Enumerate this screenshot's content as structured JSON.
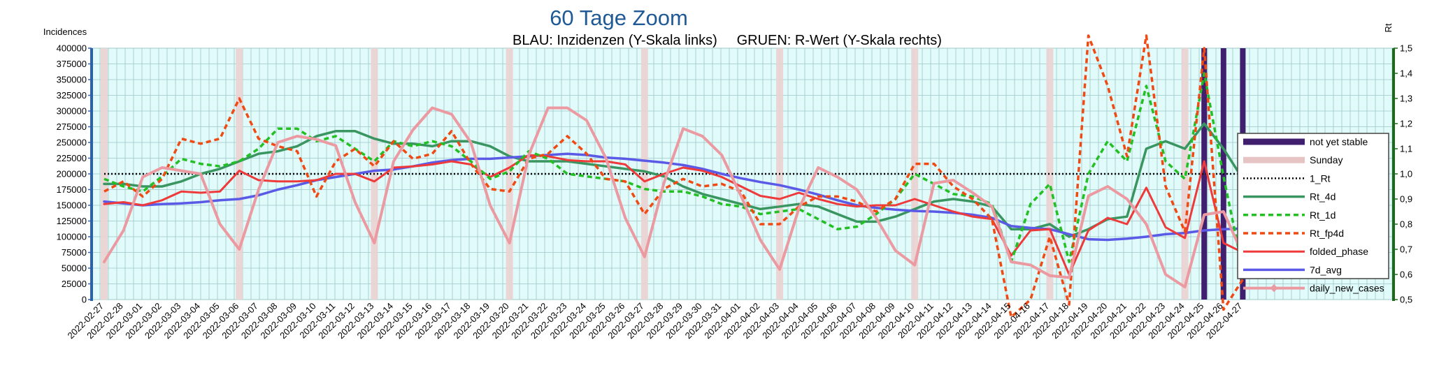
{
  "chart_data": {
    "type": "line",
    "title": "60 Tage Zoom",
    "subtitle": "BLAU: Inzidenzen (Y-Skala links)     GRUEN: R-Wert (Y-Skala rechts)",
    "ylabel_left": "Incidences",
    "ylabel_right": "Rt",
    "ylim_left": [
      0,
      400000
    ],
    "ylim_right": [
      0.5,
      1.5
    ],
    "yticks_left": [
      "0",
      "25000",
      "50000",
      "75000",
      "100000",
      "125000",
      "150000",
      "175000",
      "200000",
      "225000",
      "250000",
      "275000",
      "300000",
      "325000",
      "350000",
      "375000",
      "400000"
    ],
    "yticks_right": [
      "0,5",
      "0,6",
      "0,7",
      "0,8",
      "0,9",
      "1,0",
      "1,1",
      "1,2",
      "1,3",
      "1,4",
      "1,5"
    ],
    "grid": true,
    "legend_position": "right",
    "x": [
      "2022-02-27",
      "2022-02-28",
      "2022-03-01",
      "2022-03-02",
      "2022-03-03",
      "2022-03-04",
      "2022-03-05",
      "2022-03-06",
      "2022-03-07",
      "2022-03-08",
      "2022-03-09",
      "2022-03-10",
      "2022-03-11",
      "2022-03-12",
      "2022-03-13",
      "2022-03-14",
      "2022-03-15",
      "2022-03-16",
      "2022-03-17",
      "2022-03-18",
      "2022-03-19",
      "2022-03-20",
      "2022-03-21",
      "2022-03-22",
      "2022-03-23",
      "2022-03-24",
      "2022-03-25",
      "2022-03-26",
      "2022-03-27",
      "2022-03-28",
      "2022-03-29",
      "2022-03-30",
      "2022-03-31",
      "2022-04-01",
      "2022-04-02",
      "2022-04-03",
      "2022-04-04",
      "2022-04-05",
      "2022-04-06",
      "2022-04-07",
      "2022-04-08",
      "2022-04-09",
      "2022-04-10",
      "2022-04-11",
      "2022-04-12",
      "2022-04-13",
      "2022-04-14",
      "2022-04-15",
      "2022-04-16",
      "2022-04-17",
      "2022-04-18",
      "2022-04-19",
      "2022-04-20",
      "2022-04-21",
      "2022-04-22",
      "2022-04-23",
      "2022-04-24",
      "2022-04-25",
      "2022-04-26",
      "2022-04-27"
    ],
    "sunday_dates": [
      "2022-02-27",
      "2022-03-06",
      "2022-03-13",
      "2022-03-20",
      "2022-03-27",
      "2022-04-03",
      "2022-04-10",
      "2022-04-17",
      "2022-04-24"
    ],
    "not_yet_stable_dates": [
      "2022-04-25",
      "2022-04-26",
      "2022-04-27"
    ],
    "series": [
      {
        "name": "not yet stable",
        "axis": "left",
        "color": "#3f1f6e",
        "style": "bar"
      },
      {
        "name": "Sunday",
        "axis": "left",
        "color": "#e6c4c4",
        "style": "bar"
      },
      {
        "name": "1_Rt",
        "axis": "right",
        "color": "#000000",
        "style": "dotted",
        "values": [
          1.0,
          1.0,
          1.0,
          1.0,
          1.0,
          1.0,
          1.0,
          1.0,
          1.0,
          1.0,
          1.0,
          1.0,
          1.0,
          1.0,
          1.0,
          1.0,
          1.0,
          1.0,
          1.0,
          1.0,
          1.0,
          1.0,
          1.0,
          1.0,
          1.0,
          1.0,
          1.0,
          1.0,
          1.0,
          1.0,
          1.0,
          1.0,
          1.0,
          1.0,
          1.0,
          1.0,
          1.0,
          1.0,
          1.0,
          1.0,
          1.0,
          1.0,
          1.0,
          1.0,
          1.0,
          1.0,
          1.0,
          1.0,
          1.0,
          1.0,
          1.0,
          1.0,
          1.0,
          1.0,
          1.0,
          1.0,
          1.0,
          1.0,
          1.0,
          1.0
        ]
      },
      {
        "name": "Rt_4d",
        "axis": "right",
        "color": "#3a9660",
        "style": "solid",
        "width": 3.5,
        "values": [
          0.96,
          0.96,
          0.95,
          0.95,
          0.97,
          1.0,
          1.02,
          1.05,
          1.08,
          1.09,
          1.11,
          1.15,
          1.17,
          1.17,
          1.14,
          1.12,
          1.12,
          1.11,
          1.13,
          1.13,
          1.11,
          1.07,
          1.05,
          1.05,
          1.05,
          1.04,
          1.03,
          1.02,
          1.01,
          0.99,
          0.95,
          0.92,
          0.9,
          0.88,
          0.86,
          0.87,
          0.88,
          0.87,
          0.84,
          0.81,
          0.81,
          0.83,
          0.86,
          0.89,
          0.9,
          0.89,
          0.87,
          0.78,
          0.78,
          0.8,
          0.75,
          0.78,
          0.82,
          0.83,
          1.1,
          1.13,
          1.1,
          1.2,
          1.1,
          0.98
        ]
      },
      {
        "name": "Rt_1d",
        "axis": "right",
        "color": "#22c022",
        "style": "dashed",
        "width": 3.5,
        "values": [
          0.98,
          0.95,
          0.93,
          0.99,
          1.06,
          1.04,
          1.03,
          1.05,
          1.1,
          1.18,
          1.18,
          1.13,
          1.15,
          1.1,
          1.05,
          1.13,
          1.11,
          1.13,
          1.11,
          1.05,
          0.98,
          1.01,
          1.09,
          1.06,
          1.0,
          0.99,
          0.98,
          0.97,
          0.94,
          0.93,
          0.93,
          0.91,
          0.88,
          0.87,
          0.84,
          0.85,
          0.86,
          0.82,
          0.78,
          0.79,
          0.84,
          0.9,
          1.0,
          0.96,
          0.92,
          0.91,
          0.88,
          0.65,
          0.88,
          0.96,
          0.65,
          1.0,
          1.13,
          1.05,
          1.35,
          1.05,
          0.98,
          1.4,
          0.99,
          0.62
        ]
      },
      {
        "name": "Rt_fp4d",
        "axis": "right",
        "color": "#f04a14",
        "style": "dashed",
        "width": 3.5,
        "values": [
          0.93,
          0.97,
          0.91,
          0.98,
          1.14,
          1.12,
          1.14,
          1.3,
          1.14,
          1.11,
          1.09,
          0.91,
          1.05,
          1.1,
          1.03,
          1.13,
          1.06,
          1.08,
          1.17,
          1.04,
          0.94,
          0.93,
          1.06,
          1.08,
          1.15,
          1.08,
          0.98,
          0.97,
          0.84,
          0.94,
          0.98,
          0.95,
          0.96,
          0.93,
          0.8,
          0.8,
          0.87,
          0.91,
          0.91,
          0.89,
          0.85,
          0.9,
          1.04,
          1.04,
          0.95,
          0.9,
          0.82,
          0.43,
          0.5,
          0.75,
          0.48,
          1.55,
          1.35,
          1.07,
          1.55,
          0.95,
          0.77,
          1.5,
          0.46,
          0.58
        ]
      },
      {
        "name": "folded_phase",
        "axis": "left",
        "color": "#ee3a3a",
        "style": "solid",
        "width": 3,
        "values": [
          152000,
          155000,
          150000,
          158000,
          172000,
          170000,
          172000,
          205000,
          190000,
          188000,
          188000,
          190000,
          200000,
          200000,
          188000,
          210000,
          212000,
          215000,
          220000,
          215000,
          195000,
          210000,
          230000,
          228000,
          222000,
          220000,
          220000,
          215000,
          188000,
          200000,
          210000,
          205000,
          195000,
          180000,
          165000,
          160000,
          170000,
          160000,
          152000,
          148000,
          150000,
          150000,
          160000,
          150000,
          140000,
          132000,
          128000,
          70000,
          110000,
          112000,
          40000,
          110000,
          130000,
          120000,
          178000,
          115000,
          98000,
          220000,
          90000,
          75000
        ]
      },
      {
        "name": "7d_avg",
        "axis": "left",
        "color": "#5a5ae6",
        "style": "solid",
        "width": 3.5,
        "values": [
          156000,
          153000,
          150000,
          152000,
          153000,
          155000,
          158000,
          160000,
          166000,
          175000,
          182000,
          190000,
          195000,
          200000,
          205000,
          207000,
          212000,
          218000,
          222000,
          224000,
          224000,
          226000,
          228000,
          230000,
          232000,
          230000,
          226000,
          224000,
          221000,
          218000,
          214000,
          208000,
          200000,
          193000,
          187000,
          182000,
          175000,
          167000,
          158000,
          150000,
          146000,
          143000,
          141000,
          140000,
          138000,
          135000,
          130000,
          117000,
          114000,
          112000,
          104000,
          96000,
          95000,
          97000,
          100000,
          104000,
          106000,
          110000,
          112000,
          113000
        ]
      },
      {
        "name": "daily_new_cases",
        "axis": "left",
        "color": "#ec9aa2",
        "style": "solid",
        "width": 4,
        "values": [
          60000,
          110000,
          195000,
          210000,
          205000,
          200000,
          120000,
          80000,
          175000,
          250000,
          260000,
          255000,
          245000,
          155000,
          90000,
          220000,
          270000,
          305000,
          295000,
          250000,
          150000,
          90000,
          230000,
          305000,
          305000,
          285000,
          225000,
          130000,
          68000,
          185000,
          272000,
          260000,
          230000,
          165000,
          95000,
          48000,
          145000,
          210000,
          195000,
          175000,
          130000,
          78000,
          55000,
          185000,
          190000,
          170000,
          148000,
          60000,
          55000,
          38000,
          35000,
          165000,
          180000,
          160000,
          120000,
          40000,
          20000,
          135000,
          140000,
          72000
        ]
      }
    ]
  }
}
